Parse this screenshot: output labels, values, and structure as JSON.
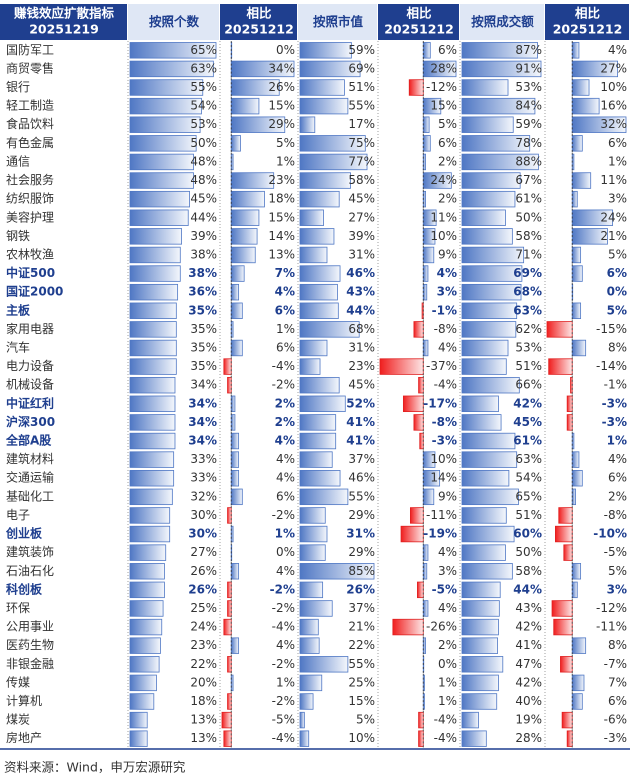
{
  "header": {
    "title": [
      "赚钱效应扩散指标",
      "20251219"
    ],
    "columns": [
      [
        "按照个数"
      ],
      [
        "相比",
        "20251212"
      ],
      [
        "按照市值"
      ],
      [
        "相比",
        "20251212"
      ],
      [
        "按照成交额"
      ],
      [
        "相比",
        "20251212"
      ]
    ]
  },
  "rows": [
    {
      "name": "国防军工",
      "values": [
        65,
        0,
        59,
        6,
        87,
        4
      ],
      "labels": [
        "65%",
        "0%",
        "59%",
        "6%",
        "87%",
        "4%"
      ]
    },
    {
      "name": "商贸零售",
      "values": [
        63,
        34,
        69,
        28,
        91,
        27
      ],
      "labels": [
        "63%",
        "34%",
        "69%",
        "28%",
        "91%",
        "27%"
      ]
    },
    {
      "name": "银行",
      "values": [
        55,
        26,
        51,
        -12,
        53,
        10
      ],
      "labels": [
        "55%",
        "26%",
        "51%",
        "-12%",
        "53%",
        "10%"
      ]
    },
    {
      "name": "轻工制造",
      "values": [
        54,
        15,
        55,
        15,
        84,
        16
      ],
      "labels": [
        "54%",
        "15%",
        "55%",
        "15%",
        "84%",
        "16%"
      ]
    },
    {
      "name": "食品饮料",
      "values": [
        53,
        29,
        17,
        5,
        59,
        32
      ],
      "labels": [
        "53%",
        "29%",
        "17%",
        "5%",
        "59%",
        "32%"
      ]
    },
    {
      "name": "有色金属",
      "values": [
        50,
        5,
        75,
        6,
        78,
        6
      ],
      "labels": [
        "50%",
        "5%",
        "75%",
        "6%",
        "78%",
        "6%"
      ]
    },
    {
      "name": "通信",
      "values": [
        48,
        1,
        77,
        2,
        88,
        1
      ],
      "labels": [
        "48%",
        "1%",
        "77%",
        "2%",
        "88%",
        "1%"
      ]
    },
    {
      "name": "社会服务",
      "values": [
        48,
        23,
        58,
        24,
        67,
        11
      ],
      "labels": [
        "48%",
        "23%",
        "58%",
        "24%",
        "67%",
        "11%"
      ]
    },
    {
      "name": "纺织服饰",
      "values": [
        45,
        18,
        45,
        2,
        61,
        3
      ],
      "labels": [
        "45%",
        "18%",
        "45%",
        "2%",
        "61%",
        "3%"
      ]
    },
    {
      "name": "美容护理",
      "values": [
        44,
        15,
        27,
        11,
        50,
        24
      ],
      "labels": [
        "44%",
        "15%",
        "27%",
        "11%",
        "50%",
        "24%"
      ]
    },
    {
      "name": "钢铁",
      "values": [
        39,
        14,
        39,
        10,
        58,
        21
      ],
      "labels": [
        "39%",
        "14%",
        "39%",
        "10%",
        "58%",
        "21%"
      ]
    },
    {
      "name": "农林牧渔",
      "values": [
        38,
        13,
        31,
        9,
        71,
        5
      ],
      "labels": [
        "38%",
        "13%",
        "31%",
        "9%",
        "71%",
        "5%"
      ]
    },
    {
      "name": "中证500",
      "values": [
        38,
        7,
        46,
        4,
        69,
        6
      ],
      "labels": [
        "38%",
        "7%",
        "46%",
        "4%",
        "69%",
        "6%"
      ],
      "bold": true
    },
    {
      "name": "国证2000",
      "values": [
        36,
        4,
        43,
        3,
        68,
        0
      ],
      "labels": [
        "36%",
        "4%",
        "43%",
        "3%",
        "68%",
        "0%"
      ],
      "bold": true
    },
    {
      "name": "主板",
      "values": [
        35,
        6,
        44,
        -1,
        63,
        5
      ],
      "labels": [
        "35%",
        "6%",
        "44%",
        "-1%",
        "63%",
        "5%"
      ],
      "bold": true
    },
    {
      "name": "家用电器",
      "values": [
        35,
        1,
        68,
        -8,
        62,
        -15
      ],
      "labels": [
        "35%",
        "1%",
        "68%",
        "-8%",
        "62%",
        "-15%"
      ]
    },
    {
      "name": "汽车",
      "values": [
        35,
        6,
        31,
        4,
        53,
        8
      ],
      "labels": [
        "35%",
        "6%",
        "31%",
        "4%",
        "53%",
        "8%"
      ]
    },
    {
      "name": "电力设备",
      "values": [
        35,
        -4,
        23,
        -37,
        51,
        -14
      ],
      "labels": [
        "35%",
        "-4%",
        "23%",
        "-37%",
        "51%",
        "-14%"
      ]
    },
    {
      "name": "机械设备",
      "values": [
        34,
        -2,
        45,
        -4,
        66,
        -1
      ],
      "labels": [
        "34%",
        "-2%",
        "45%",
        "-4%",
        "66%",
        "-1%"
      ]
    },
    {
      "name": "中证红利",
      "values": [
        34,
        2,
        52,
        -17,
        42,
        -3
      ],
      "labels": [
        "34%",
        "2%",
        "52%",
        "-17%",
        "42%",
        "-3%"
      ],
      "bold": true
    },
    {
      "name": "沪深300",
      "values": [
        34,
        2,
        41,
        -8,
        45,
        -3
      ],
      "labels": [
        "34%",
        "2%",
        "41%",
        "-8%",
        "45%",
        "-3%"
      ],
      "bold": true
    },
    {
      "name": "全部A股",
      "values": [
        34,
        4,
        41,
        -3,
        61,
        1
      ],
      "labels": [
        "34%",
        "4%",
        "41%",
        "-3%",
        "61%",
        "1%"
      ],
      "bold": true
    },
    {
      "name": "建筑材料",
      "values": [
        33,
        4,
        37,
        10,
        63,
        4
      ],
      "labels": [
        "33%",
        "4%",
        "37%",
        "10%",
        "63%",
        "4%"
      ]
    },
    {
      "name": "交通运输",
      "values": [
        33,
        4,
        46,
        14,
        54,
        6
      ],
      "labels": [
        "33%",
        "4%",
        "46%",
        "14%",
        "54%",
        "6%"
      ]
    },
    {
      "name": "基础化工",
      "values": [
        32,
        6,
        55,
        9,
        65,
        2
      ],
      "labels": [
        "32%",
        "6%",
        "55%",
        "9%",
        "65%",
        "2%"
      ]
    },
    {
      "name": "电子",
      "values": [
        30,
        -2,
        29,
        -11,
        51,
        -8
      ],
      "labels": [
        "30%",
        "-2%",
        "29%",
        "-11%",
        "51%",
        "-8%"
      ]
    },
    {
      "name": "创业板",
      "values": [
        30,
        1,
        31,
        -19,
        60,
        -10
      ],
      "labels": [
        "30%",
        "1%",
        "31%",
        "-19%",
        "60%",
        "-10%"
      ],
      "bold": true
    },
    {
      "name": "建筑装饰",
      "values": [
        27,
        0,
        29,
        4,
        50,
        -5
      ],
      "labels": [
        "27%",
        "0%",
        "29%",
        "4%",
        "50%",
        "-5%"
      ]
    },
    {
      "name": "石油石化",
      "values": [
        26,
        4,
        85,
        3,
        58,
        5
      ],
      "labels": [
        "26%",
        "4%",
        "85%",
        "3%",
        "58%",
        "5%"
      ]
    },
    {
      "name": "科创板",
      "values": [
        26,
        -2,
        26,
        -5,
        44,
        3
      ],
      "labels": [
        "26%",
        "-2%",
        "26%",
        "-5%",
        "44%",
        "3%"
      ],
      "bold": true
    },
    {
      "name": "环保",
      "values": [
        25,
        -2,
        37,
        4,
        43,
        -12
      ],
      "labels": [
        "25%",
        "-2%",
        "37%",
        "4%",
        "43%",
        "-12%"
      ]
    },
    {
      "name": "公用事业",
      "values": [
        24,
        -4,
        21,
        -26,
        42,
        -11
      ],
      "labels": [
        "24%",
        "-4%",
        "21%",
        "-26%",
        "42%",
        "-11%"
      ]
    },
    {
      "name": "医药生物",
      "values": [
        23,
        4,
        22,
        2,
        41,
        8
      ],
      "labels": [
        "23%",
        "4%",
        "22%",
        "2%",
        "41%",
        "8%"
      ]
    },
    {
      "name": "非银金融",
      "values": [
        22,
        -2,
        55,
        0,
        47,
        -7
      ],
      "labels": [
        "22%",
        "-2%",
        "55%",
        "0%",
        "47%",
        "-7%"
      ]
    },
    {
      "name": "传媒",
      "values": [
        20,
        1,
        25,
        1,
        42,
        7
      ],
      "labels": [
        "20%",
        "1%",
        "25%",
        "1%",
        "42%",
        "7%"
      ]
    },
    {
      "name": "计算机",
      "values": [
        18,
        -2,
        15,
        1,
        40,
        6
      ],
      "labels": [
        "18%",
        "-2%",
        "15%",
        "1%",
        "40%",
        "6%"
      ]
    },
    {
      "name": "煤炭",
      "values": [
        13,
        -5,
        5,
        -4,
        19,
        -6
      ],
      "labels": [
        "13%",
        "-5%",
        "5%",
        "-4%",
        "19%",
        "-6%"
      ]
    },
    {
      "name": "房地产",
      "values": [
        13,
        -4,
        10,
        -4,
        28,
        -3
      ],
      "labels": [
        "13%",
        "-4%",
        "10%",
        "-4%",
        "28%",
        "-3%"
      ]
    }
  ],
  "source": "资料来源：Wind，申万宏源研究"
}
